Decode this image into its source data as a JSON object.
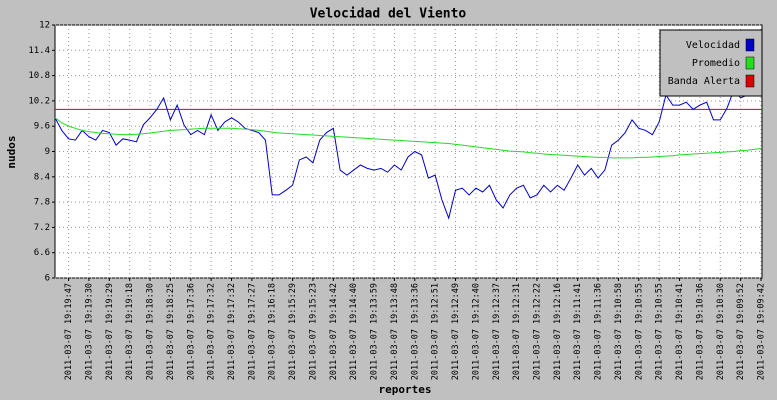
{
  "chart_data": {
    "type": "line",
    "title": "Velocidad del Viento",
    "y_label": "nudos",
    "x_label": "reportes",
    "ylim": [
      6,
      12
    ],
    "yticks": [
      6,
      6.6,
      7.2,
      7.8,
      8.4,
      9,
      9.6,
      10.2,
      10.8,
      11.4,
      12
    ],
    "grid": true,
    "legend_position": "top-right",
    "categories": [
      null,
      null,
      "2011-03-07 19:19:47",
      null,
      null,
      "2011-03-07 19:19:30",
      null,
      null,
      "2011-03-07 19:19:29",
      null,
      null,
      "2011-03-07 19:19:18",
      null,
      null,
      "2011-03-07 19:18:30",
      null,
      null,
      "2011-03-07 19:18:25",
      null,
      null,
      "2011-03-07 19:17:36",
      null,
      null,
      "2011-03-07 19:17:32",
      null,
      null,
      "2011-03-07 19:17:32",
      null,
      null,
      "2011-03-07 19:17:27",
      null,
      null,
      "2011-03-07 19:16:18",
      null,
      null,
      "2011-03-07 19:15:29",
      null,
      null,
      "2011-03-07 19:15:23",
      null,
      null,
      "2011-03-07 19:14:42",
      null,
      null,
      "2011-03-07 19:14:40",
      null,
      null,
      "2011-03-07 19:13:59",
      null,
      null,
      "2011-03-07 19:13:48",
      null,
      null,
      "2011-03-07 19:13:36",
      null,
      null,
      "2011-03-07 19:12:51",
      null,
      null,
      "2011-03-07 19:12:49",
      null,
      null,
      "2011-03-07 19:12:40",
      null,
      null,
      "2011-03-07 19:12:37",
      null,
      null,
      "2011-03-07 19:12:31",
      null,
      null,
      "2011-03-07 19:12:22",
      null,
      null,
      "2011-03-07 19:12:16",
      null,
      null,
      "2011-03-07 19:11:41",
      null,
      null,
      "2011-03-07 19:11:36",
      null,
      null,
      "2011-03-07 19:10:58",
      null,
      null,
      "2011-03-07 19:10:55",
      null,
      null,
      "2011-03-07 19:10:55",
      null,
      null,
      "2011-03-07 19:10:41",
      null,
      null,
      "2011-03-07 19:10:36",
      null,
      null,
      "2011-03-07 19:10:30",
      null,
      null,
      "2011-03-07 19:09:52",
      null,
      null,
      "2011-03-07 19:09:42"
    ],
    "series": [
      {
        "name": "Velocidad",
        "color": "#0000cc",
        "values": [
          9.8,
          9.5,
          9.3,
          9.27,
          9.5,
          9.35,
          9.27,
          9.5,
          9.45,
          9.15,
          9.3,
          9.27,
          9.23,
          9.63,
          9.8,
          10.0,
          10.27,
          9.75,
          10.1,
          9.63,
          9.4,
          9.5,
          9.4,
          9.87,
          9.5,
          9.7,
          9.8,
          9.7,
          9.55,
          9.5,
          9.45,
          9.27,
          7.97,
          7.97,
          8.08,
          8.2,
          8.8,
          8.87,
          8.73,
          9.27,
          9.45,
          9.55,
          8.56,
          8.44,
          8.56,
          8.68,
          8.6,
          8.56,
          8.6,
          8.51,
          8.68,
          8.56,
          8.87,
          9.0,
          8.92,
          8.37,
          8.44,
          7.85,
          7.42,
          8.08,
          8.13,
          7.97,
          8.13,
          8.04,
          8.2,
          7.85,
          7.66,
          7.97,
          8.13,
          8.2,
          7.9,
          7.97,
          8.2,
          8.04,
          8.2,
          8.08,
          8.37,
          8.68,
          8.44,
          8.6,
          8.37,
          8.56,
          9.15,
          9.27,
          9.45,
          9.75,
          9.55,
          9.5,
          9.4,
          9.7,
          10.34,
          10.1,
          10.1,
          10.17,
          10.0,
          10.1,
          10.17,
          9.75,
          9.75,
          10.03,
          10.46,
          10.27,
          10.34,
          10.46,
          10.41
        ]
      },
      {
        "name": "Promedio",
        "color": "#22dd22",
        "values": [
          9.8,
          9.68,
          9.6,
          9.55,
          9.5,
          9.47,
          9.45,
          9.43,
          9.42,
          9.41,
          9.4,
          9.4,
          9.41,
          9.42,
          9.44,
          9.46,
          9.48,
          9.5,
          9.51,
          9.52,
          9.53,
          9.54,
          9.55,
          9.55,
          9.55,
          9.55,
          9.55,
          9.54,
          9.53,
          9.52,
          9.5,
          9.48,
          9.46,
          9.44,
          9.43,
          9.42,
          9.41,
          9.4,
          9.39,
          9.38,
          9.37,
          9.36,
          9.35,
          9.34,
          9.33,
          9.32,
          9.31,
          9.3,
          9.29,
          9.28,
          9.27,
          9.26,
          9.25,
          9.24,
          9.23,
          9.22,
          9.21,
          9.2,
          9.19,
          9.17,
          9.15,
          9.13,
          9.11,
          9.09,
          9.07,
          9.05,
          9.03,
          9.01,
          9.0,
          8.99,
          8.97,
          8.96,
          8.94,
          8.93,
          8.92,
          8.91,
          8.9,
          8.89,
          8.88,
          8.87,
          8.86,
          8.86,
          8.85,
          8.85,
          8.85,
          8.85,
          8.86,
          8.86,
          8.87,
          8.88,
          8.89,
          8.9,
          8.92,
          8.93,
          8.94,
          8.95,
          8.96,
          8.97,
          8.98,
          8.99,
          9.0,
          9.02,
          9.03,
          9.05,
          9.07
        ]
      }
    ],
    "reference_lines": [
      {
        "name": "Banda Alerta",
        "color": "#dd0000",
        "value": 10
      }
    ]
  }
}
